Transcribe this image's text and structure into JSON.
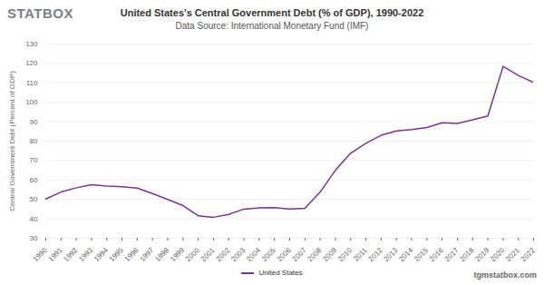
{
  "chart_data": {
    "type": "line",
    "logo": "STATBOX",
    "title": "United States's Central Government Debt (% of GDP), 1990-2022",
    "subtitle": "Data Source: International Monetary Fund (IMF)",
    "y_label": "Central Government Debt (Percent of GDP)",
    "watermark": "tgmstatbox.com",
    "x": [
      1990,
      1991,
      1992,
      1993,
      1994,
      1995,
      1996,
      1997,
      1998,
      1999,
      2000,
      2001,
      2002,
      2003,
      2004,
      2005,
      2006,
      2007,
      2008,
      2009,
      2010,
      2011,
      2012,
      2013,
      2014,
      2015,
      2016,
      2017,
      2018,
      2019,
      2020,
      2021,
      2022
    ],
    "series": [
      {
        "name": "United States",
        "color": "#7b3294",
        "values": [
          50.2,
          53.8,
          56.0,
          57.6,
          56.9,
          56.5,
          55.8,
          53.0,
          50.0,
          46.8,
          41.6,
          40.8,
          42.3,
          45.0,
          45.7,
          45.8,
          45.1,
          45.4,
          53.8,
          65.0,
          73.8,
          78.9,
          83.0,
          85.3,
          86.0,
          87.0,
          89.5,
          89.1,
          91.0,
          93.0,
          118.5,
          113.8,
          110.2
        ]
      }
    ],
    "xlim": [
      1990,
      2022
    ],
    "xticks": [
      1990,
      1991,
      1992,
      1993,
      1994,
      1995,
      1996,
      1997,
      1998,
      1999,
      2000,
      2001,
      2002,
      2003,
      2004,
      2005,
      2006,
      2007,
      2008,
      2009,
      2010,
      2011,
      2012,
      2013,
      2014,
      2015,
      2016,
      2017,
      2018,
      2019,
      2020,
      2021,
      2022
    ],
    "ylim": [
      30,
      130
    ],
    "yticks": [
      30,
      40,
      50,
      60,
      70,
      80,
      90,
      100,
      110,
      120,
      130
    ],
    "grid": true,
    "legend": "bottom"
  }
}
